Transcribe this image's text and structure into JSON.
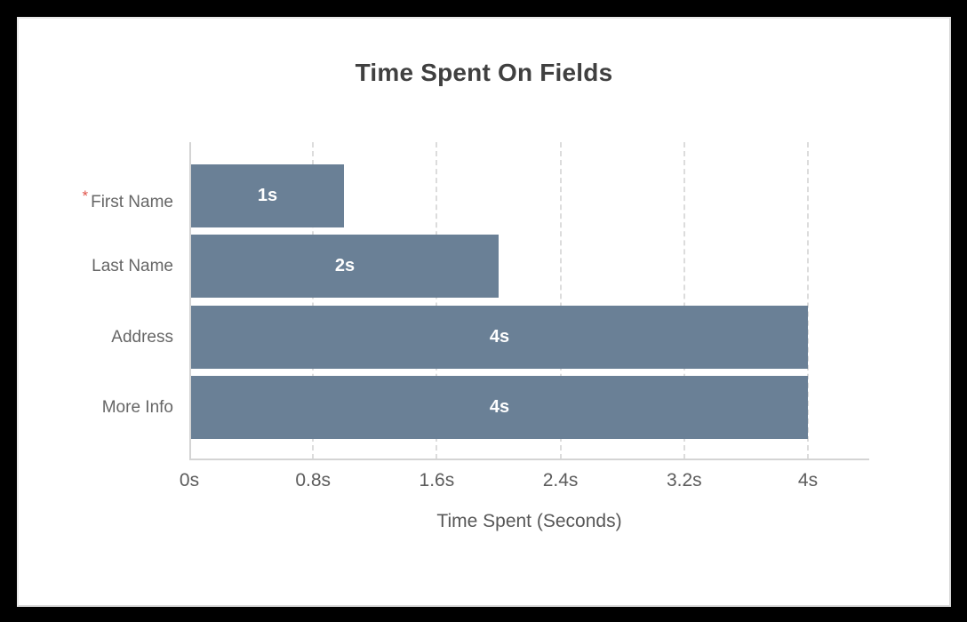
{
  "window": {
    "background_color": "#000000",
    "card_background_color": "#ffffff"
  },
  "chart_data": {
    "type": "bar",
    "orientation": "horizontal",
    "title": "Time Spent On Fields",
    "xlabel": "Time Spent (Seconds)",
    "ylabel": "",
    "categories": [
      "First Name",
      "Last Name",
      "Address",
      "More Info"
    ],
    "values": [
      1,
      2,
      4,
      4
    ],
    "value_labels": [
      "1s",
      "2s",
      "4s",
      "4s"
    ],
    "required_fields": [
      true,
      false,
      false,
      false
    ],
    "required_marker": "*",
    "x_ticks": [
      {
        "value": 0,
        "label": "0s"
      },
      {
        "value": 0.8,
        "label": "0.8s"
      },
      {
        "value": 1.6,
        "label": "1.6s"
      },
      {
        "value": 2.4,
        "label": "2.4s"
      },
      {
        "value": 3.2,
        "label": "3.2s"
      },
      {
        "value": 4,
        "label": "4s"
      }
    ],
    "xlim": [
      0,
      4.4
    ],
    "grid": {
      "vertical": true,
      "horizontal": false,
      "style": "dashed"
    },
    "legend": "none",
    "colors": {
      "bar": "#6A8096",
      "bar_value_text": "#ffffff",
      "title_text": "#404040",
      "category_text": "#666666",
      "tick_text": "#5c5c5c",
      "axis_title_text": "#575757",
      "axis_line": "#d4d4d4",
      "gridline": "#dcdcdc",
      "required_marker": "#e0534a"
    }
  }
}
